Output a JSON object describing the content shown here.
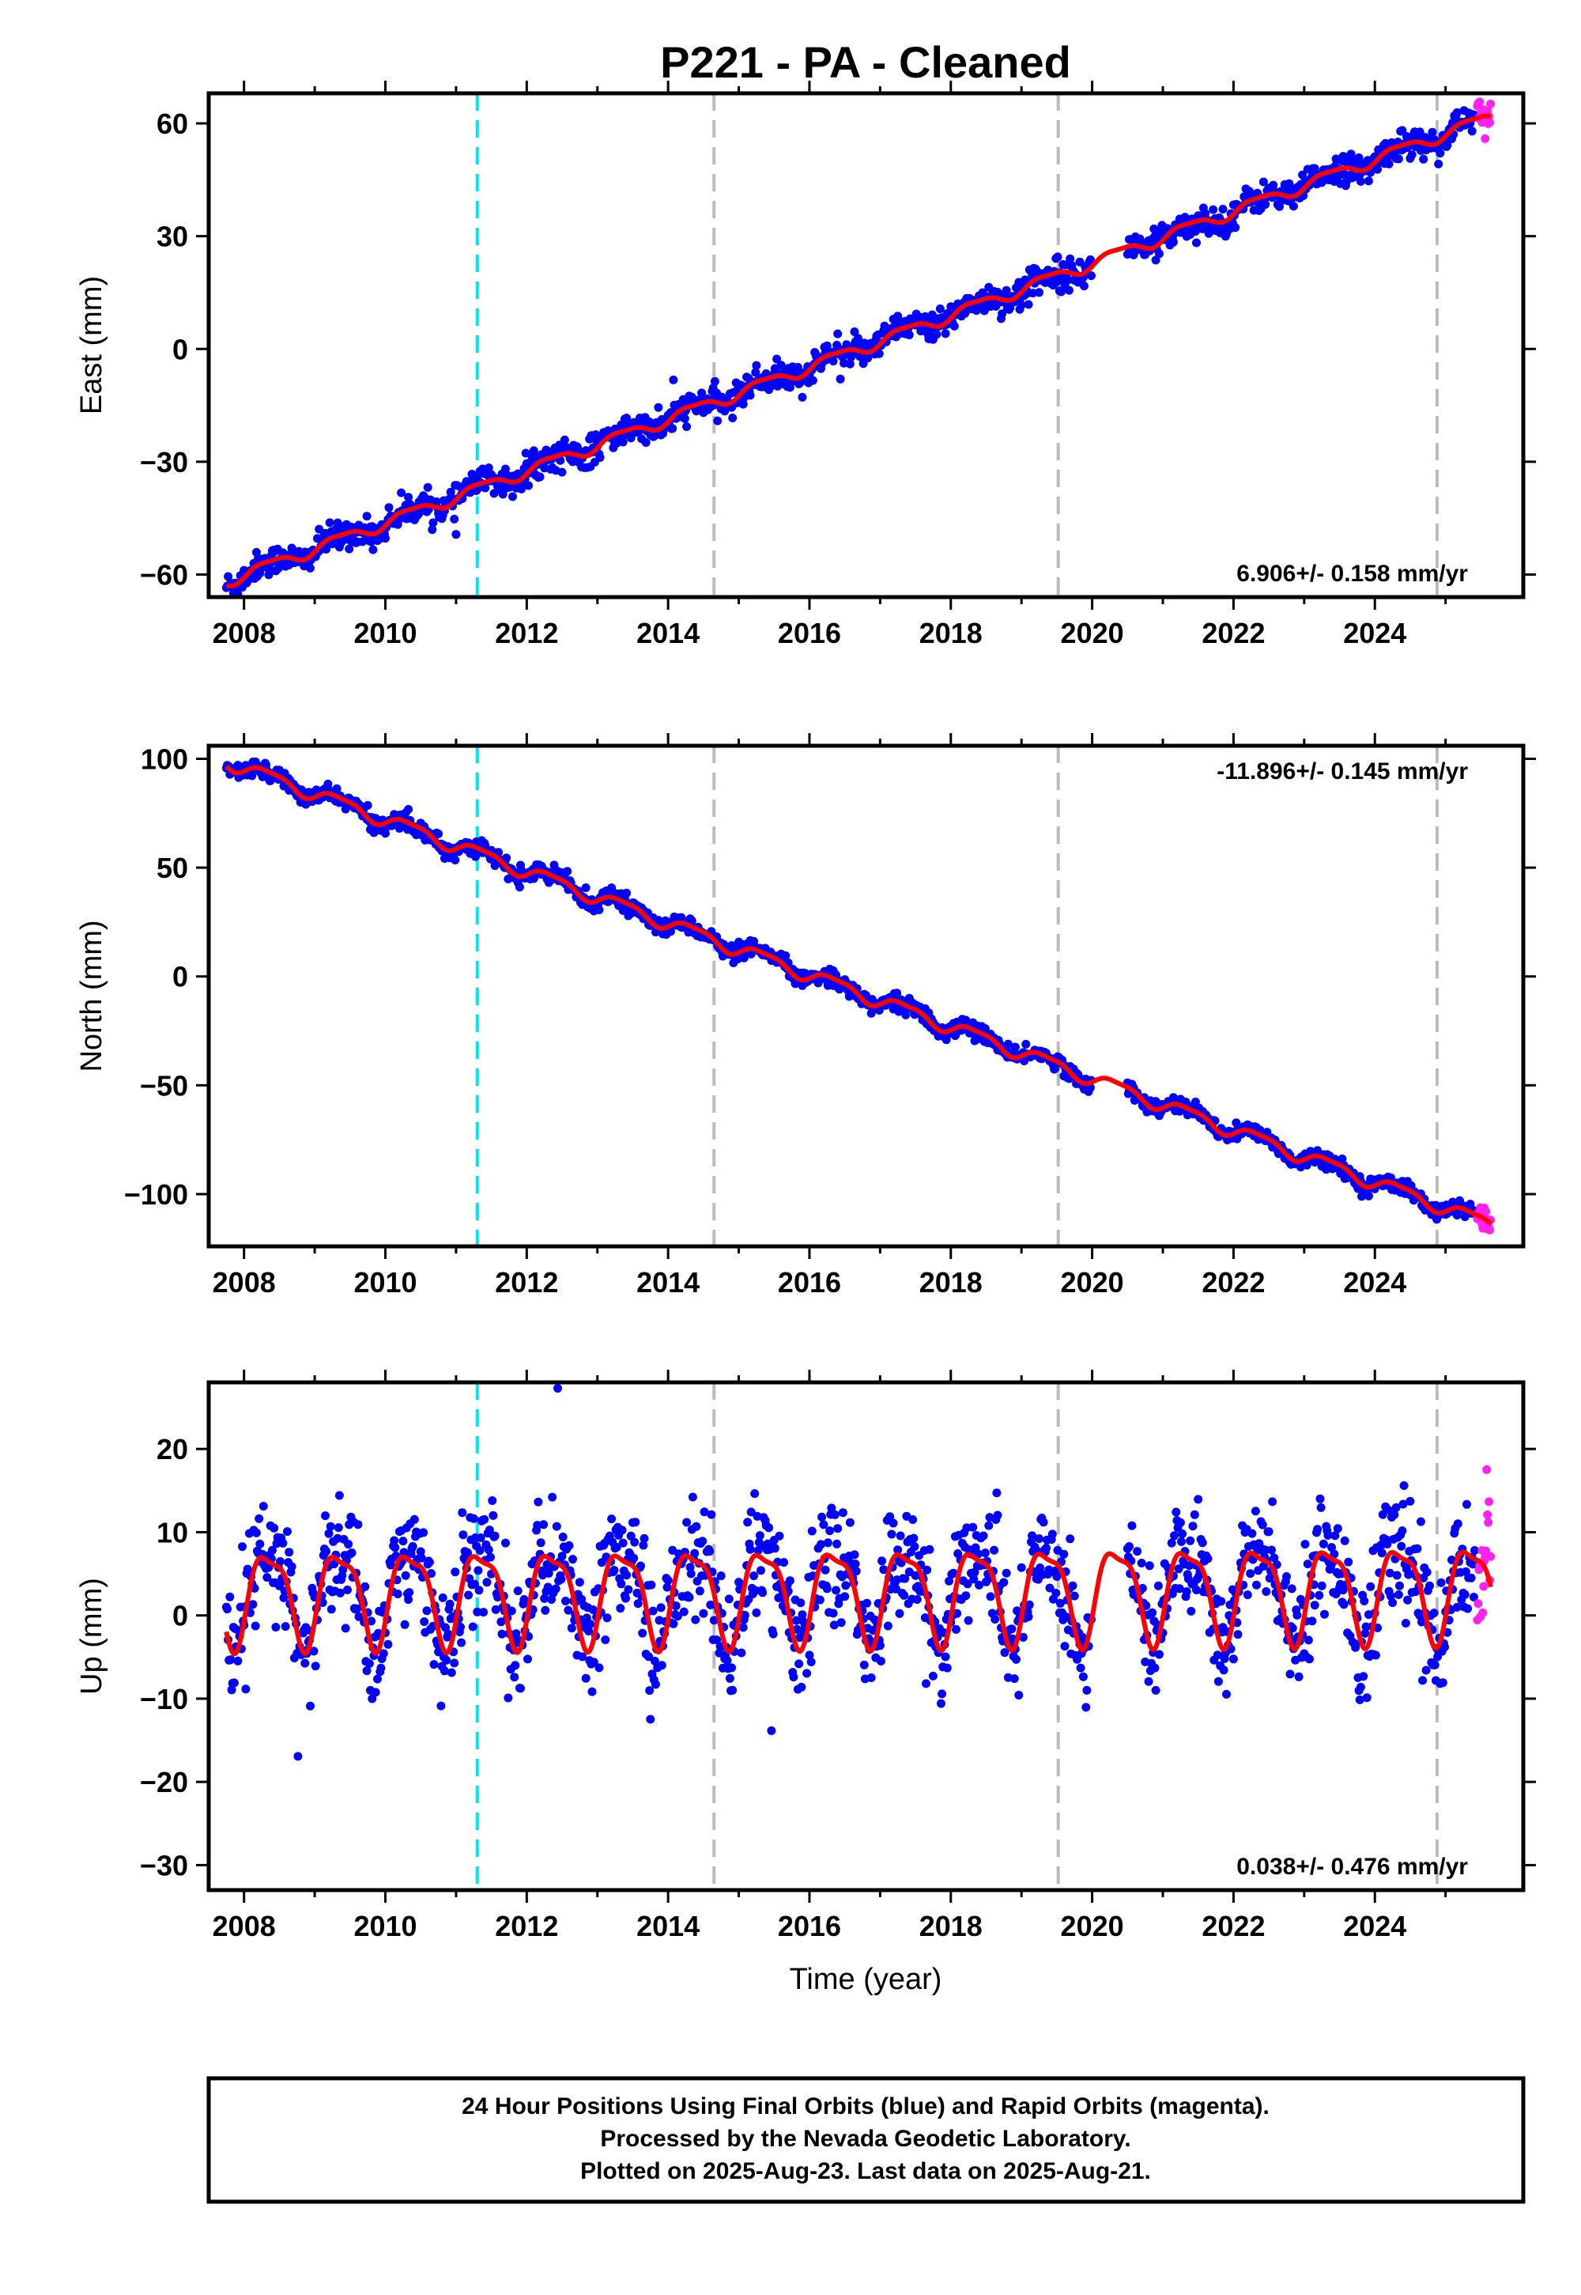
{
  "title": "P221  - PA - Cleaned",
  "xlabel": "Time (year)",
  "xticks": [
    "2008",
    "2010",
    "2012",
    "2014",
    "2016",
    "2018",
    "2020",
    "2022",
    "2024"
  ],
  "caption": [
    "24 Hour Positions Using Final Orbits (blue) and Rapid Orbits (magenta).",
    "Processed by the Nevada Geodetic Laboratory.",
    "Plotted on 2025-Aug-23. Last data on 2025-Aug-21."
  ],
  "colors": {
    "final_points": "#0000ff",
    "rapid_points": "#ff22ee",
    "model_line": "#ff0000",
    "equipment_change": "#00e5ee",
    "other_event": "#bbbbbb"
  },
  "chart_data": [
    {
      "type": "scatter",
      "panel": "east",
      "ylabel": "East (mm)",
      "xlim": [
        2007.5,
        2026.1
      ],
      "ylim": [
        -66,
        68
      ],
      "yticks": [
        60,
        30,
        0,
        -30,
        -60
      ],
      "ytick_labels": [
        "60",
        "30",
        "0",
        "−30",
        "−60"
      ],
      "rate_label": "6.906+/- 0.158 mm/yr",
      "rate_position": "bottom-right",
      "final_orbit_span": [
        2007.75,
        2025.42
      ],
      "rapid_orbit_span": [
        2025.45,
        2025.64
      ],
      "trend": {
        "intercept_at_2008": -60,
        "slope_mm_per_yr": 6.906
      },
      "seasonal_amplitude_mm": 1.5,
      "scatter_mm": 1.8,
      "data_gap": [
        2020.0,
        2020.5
      ],
      "equipment_change_years": [
        2011.3
      ],
      "other_event_years": [
        2014.65,
        2019.52,
        2024.88
      ]
    },
    {
      "type": "scatter",
      "panel": "north",
      "ylabel": "North (mm)",
      "xlim": [
        2007.5,
        2026.1
      ],
      "ylim": [
        -124,
        106
      ],
      "yticks": [
        100,
        50,
        0,
        -50,
        -100
      ],
      "ytick_labels": [
        "100",
        "50",
        "0",
        "−50",
        "−100"
      ],
      "rate_label": "-11.896+/- 0.145 mm/yr",
      "rate_position": "top-right",
      "final_orbit_span": [
        2007.75,
        2025.42
      ],
      "rapid_orbit_span": [
        2025.45,
        2025.64
      ],
      "trend": {
        "intercept_at_2008": 96,
        "slope_mm_per_yr": -11.896
      },
      "seasonal_amplitude_mm": 3.0,
      "scatter_mm": 1.8,
      "data_gap": [
        2020.0,
        2020.5
      ],
      "equipment_change_years": [
        2011.3
      ],
      "other_event_years": [
        2014.65,
        2019.52,
        2024.88
      ]
    },
    {
      "type": "scatter",
      "panel": "up",
      "ylabel": "Up (mm)",
      "xlim": [
        2007.5,
        2026.1
      ],
      "ylim": [
        -33,
        28
      ],
      "yticks": [
        20,
        10,
        0,
        -10,
        -20,
        -30
      ],
      "ytick_labels": [
        "20",
        "10",
        "0",
        "−10",
        "−20",
        "−30"
      ],
      "rate_label": "0.038+/- 0.476 mm/yr",
      "rate_position": "bottom-right",
      "final_orbit_span": [
        2007.75,
        2025.42
      ],
      "rapid_orbit_span": [
        2025.45,
        2025.64
      ],
      "trend": {
        "intercept_at_2008": 2.5,
        "slope_mm_per_yr": 0.038
      },
      "seasonal_amplitude_mm": 5.5,
      "scatter_mm": 3.5,
      "data_gap": [
        2020.0,
        2020.5
      ],
      "equipment_change_years": [
        2011.3
      ],
      "other_event_years": [
        2014.65,
        2019.52,
        2024.88
      ]
    }
  ]
}
